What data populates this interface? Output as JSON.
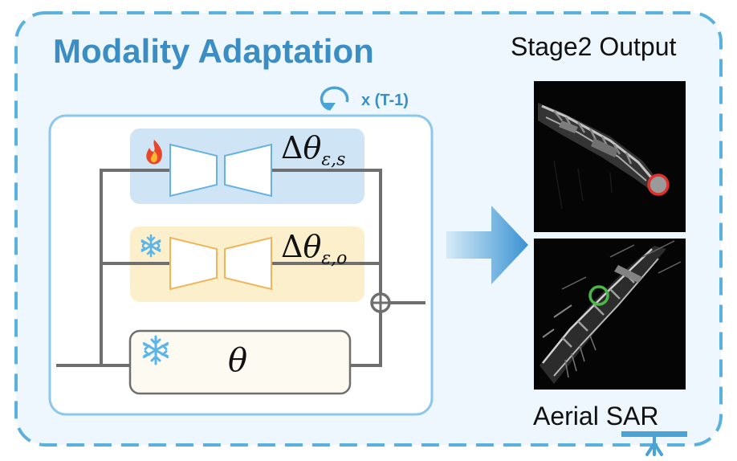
{
  "title": "Modality Adaptation",
  "loop_label": "x (T-1)",
  "stage_title": "Stage2 Output",
  "caption": {
    "prefix": "Aerial ",
    "highlight": "SAR"
  },
  "modules": {
    "adapter_s": {
      "delta": "Δ",
      "symbol": "θ",
      "subscript": "ε,s",
      "state": "trainable",
      "icon": "fire-icon"
    },
    "adapter_o": {
      "delta": "Δ",
      "symbol": "θ",
      "subscript": "ε,o",
      "state": "frozen",
      "icon": "snowflake-icon"
    },
    "base": {
      "symbol": "θ",
      "state": "frozen",
      "icon": "snowflake-icon"
    }
  },
  "colors": {
    "accent_blue": "#3a8ec4",
    "panel_bg": "#eef7fd",
    "adapter_s_bg": "#cfe4f5",
    "adapter_o_bg": "#fcefcc",
    "base_bg": "#fdfaf1",
    "line_gray": "#6f6f6f",
    "red_circle": "#e0302a",
    "green_circle": "#49b845",
    "highlight_bar": "#4aa3d6"
  }
}
